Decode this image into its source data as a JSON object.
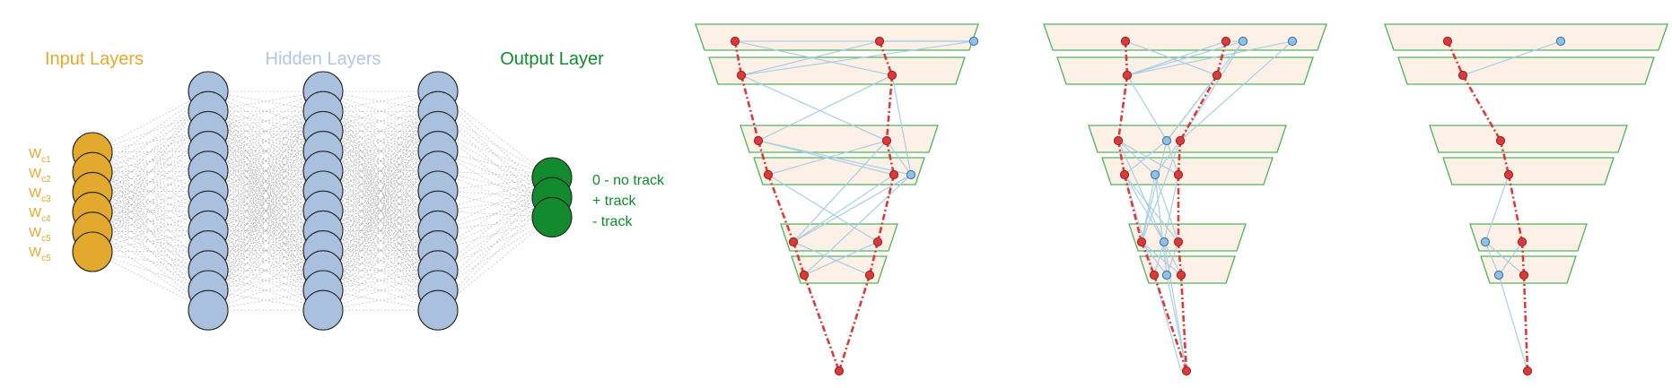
{
  "network": {
    "titles": {
      "input": "Input Layers",
      "hidden": "Hidden Layers",
      "output": "Output Layer"
    },
    "input_weights": [
      {
        "base": "W",
        "sub": "c1"
      },
      {
        "base": "W",
        "sub": "c2"
      },
      {
        "base": "W",
        "sub": "c3"
      },
      {
        "base": "W",
        "sub": "c4"
      },
      {
        "base": "W",
        "sub": "c5"
      },
      {
        "base": "W",
        "sub": "c5"
      }
    ],
    "output_labels": [
      "0 - no track",
      "+ track",
      "- track"
    ],
    "colors": {
      "input": "#e3a92f",
      "hidden": "#a9c0de",
      "hidden_title": "#b4c6e0",
      "output": "#138a2e",
      "connection": "#b5b5b5"
    },
    "layer_sizes": [
      6,
      12,
      12,
      12,
      3
    ]
  },
  "track_panels": {
    "colors": {
      "plane_fill": "#fdf1e7",
      "plane_stroke": "#52b25c",
      "track_hit": "#d93b3b",
      "track_line": "#d93b3b",
      "noise_hit": "#8fc0e6",
      "noise_line": "#a8cce4"
    }
  }
}
